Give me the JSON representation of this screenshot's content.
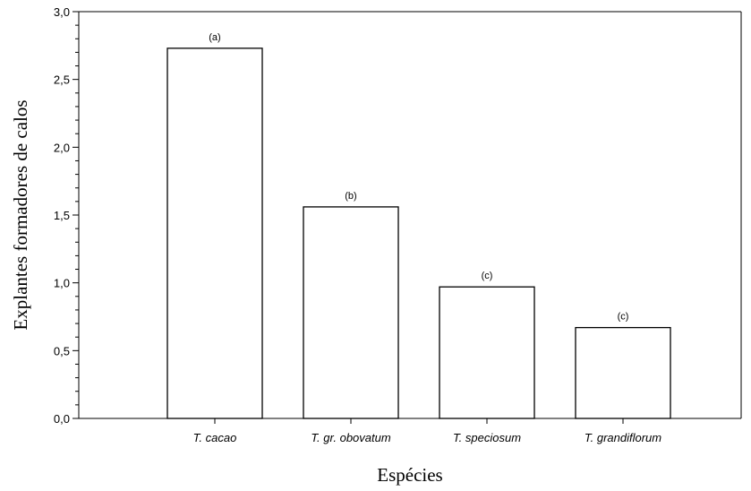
{
  "chart_data": {
    "type": "bar",
    "categories": [
      "T. cacao",
      "T. gr. obovatum",
      "T. speciosum",
      "T. grandiflorum"
    ],
    "values": [
      2.73,
      1.56,
      0.97,
      0.67
    ],
    "data_labels": [
      "(a)",
      "(b)",
      "(c)",
      "(c)"
    ],
    "xlabel": "Espécies",
    "ylabel": "Explantes formadores de calos",
    "ylim": [
      0,
      3.0
    ],
    "yticks": [
      0,
      0.5,
      1.0,
      1.5,
      2.0,
      2.5,
      3.0
    ],
    "ytick_labels": [
      "0,0",
      "0,5",
      "1,0",
      "1,5",
      "2,0",
      "2,5",
      "3,0"
    ],
    "grid": false,
    "colors": {
      "bar_fill": "#ffffff",
      "bar_stroke": "#000000"
    }
  }
}
